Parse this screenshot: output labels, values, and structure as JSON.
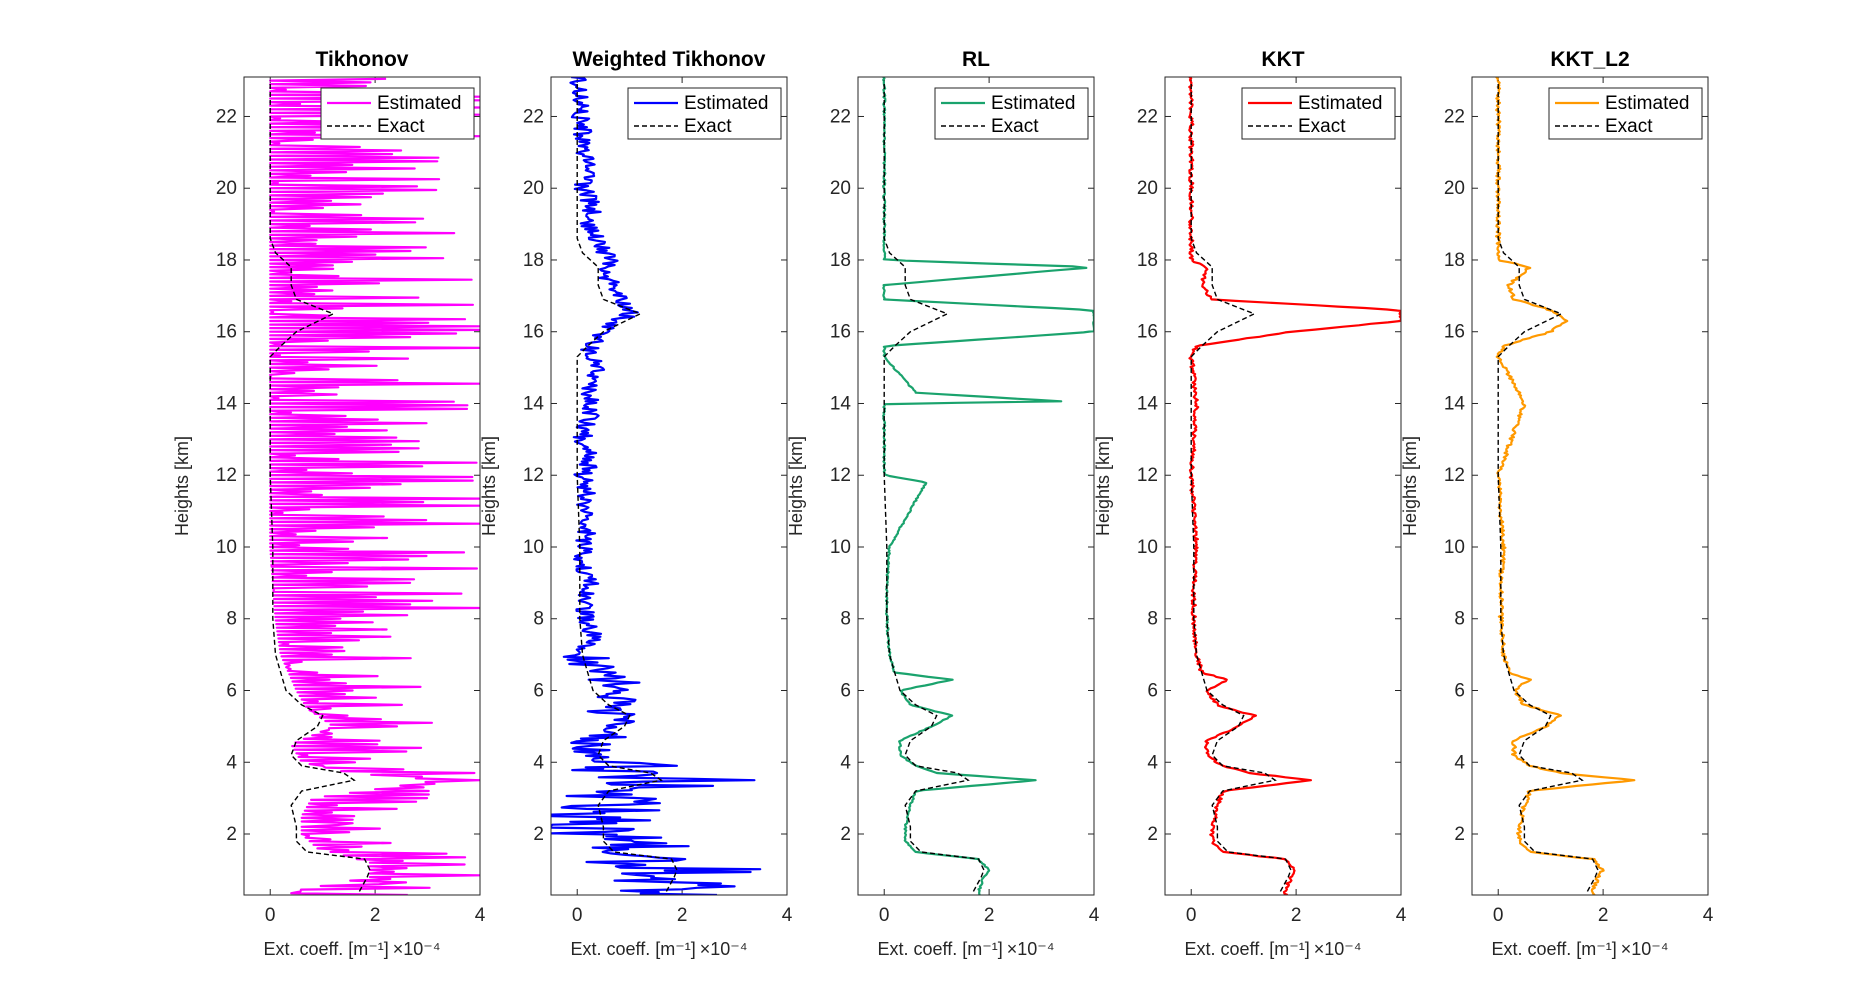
{
  "chart_data": [
    {
      "type": "line",
      "title": "Tikhonov",
      "xlabel": "Ext. coeff. [m⁻¹]",
      "x_multiplier": "×10⁻⁴",
      "ylabel": "Heights [km]",
      "xlim": [
        -0.5,
        4
      ],
      "ylim": [
        0.3,
        23.1
      ],
      "xticks": [
        "0",
        "2",
        "4"
      ],
      "yticks": [
        "2",
        "4",
        "6",
        "8",
        "10",
        "12",
        "14",
        "16",
        "18",
        "20",
        "22"
      ],
      "legend": [
        "Estimated",
        "Exact"
      ],
      "legend_position": "top-right",
      "color": "#ff00ff",
      "estimated_style": "oscillating",
      "estimated_noise": 4.3,
      "series": [
        {
          "name": "Estimated",
          "y": [
            0.4,
            0.8,
            1.2,
            1.6,
            2.0,
            2.5,
            3.0,
            3.5,
            3.7,
            4.0,
            4.5,
            5.0,
            5.5,
            6.0,
            7.0,
            8.0,
            10.0,
            12.0,
            14.0,
            16.0,
            18.0,
            20.0,
            23.0
          ],
          "x": [
            0.4,
            1.9,
            1.9,
            0.9,
            0.6,
            0.6,
            0.8,
            3.2,
            1.5,
            0.6,
            0.4,
            1.2,
            0.7,
            0.5,
            0.2,
            0.1,
            0.0,
            0.0,
            0.0,
            0.0,
            0.0,
            0.0,
            0.0
          ]
        },
        {
          "name": "Exact",
          "y": [
            0.4,
            0.8,
            1.0,
            1.3,
            1.5,
            1.8,
            2.2,
            2.8,
            3.2,
            3.5,
            3.7,
            3.9,
            4.2,
            4.6,
            5.0,
            5.3,
            5.6,
            6.0,
            6.5,
            7.0,
            8.0,
            9.0,
            10.0,
            12.0,
            14.0,
            15.3,
            15.6,
            16.0,
            16.5,
            16.9,
            17.3,
            17.8,
            18.2,
            18.6,
            20.0,
            23.0
          ],
          "x": [
            1.7,
            1.85,
            1.9,
            1.8,
            0.7,
            0.5,
            0.5,
            0.4,
            0.6,
            1.6,
            1.4,
            0.6,
            0.4,
            0.5,
            0.9,
            1.0,
            0.6,
            0.3,
            0.2,
            0.1,
            0.05,
            0.05,
            0.05,
            0.0,
            0.0,
            0.0,
            0.2,
            0.5,
            1.2,
            0.5,
            0.4,
            0.4,
            0.1,
            0.0,
            0.0,
            0.0
          ]
        }
      ]
    },
    {
      "type": "line",
      "title": "Weighted Tikhonov",
      "xlabel": "Ext. coeff. [m⁻¹]",
      "x_multiplier": "×10⁻⁴",
      "ylabel": "Heights [km]",
      "xlim": [
        -0.5,
        4
      ],
      "ylim": [
        0.3,
        23.1
      ],
      "xticks": [
        "0",
        "2",
        "4"
      ],
      "yticks": [
        "2",
        "4",
        "6",
        "8",
        "10",
        "12",
        "14",
        "16",
        "18",
        "20",
        "22"
      ],
      "legend": [
        "Estimated",
        "Exact"
      ],
      "legend_position": "top-right",
      "color": "#0000ff",
      "estimated_style": "noisy",
      "series": [
        {
          "name": "Estimated",
          "y": [
            0.3,
            0.5,
            0.8,
            1.0,
            1.3,
            1.6,
            2.0,
            2.5,
            3.0,
            3.5,
            3.8,
            4.0,
            4.5,
            5.0,
            5.5,
            6.0,
            6.5,
            7.0,
            7.5,
            8.0,
            8.5,
            9.0,
            9.5,
            10.0,
            10.5,
            11.0,
            11.5,
            12.0,
            12.5,
            13.0,
            13.5,
            14.0,
            14.5,
            15.0,
            15.5,
            16.0,
            16.5,
            17.0,
            17.5,
            18.0,
            18.5,
            19.0,
            19.5,
            20.0,
            20.5,
            21.0,
            21.5,
            22.0,
            22.5,
            23.0
          ],
          "x": [
            1.5,
            2.2,
            1.8,
            2.5,
            1.0,
            1.2,
            0.4,
            0.6,
            0.3,
            2.0,
            0.8,
            0.5,
            0.2,
            1.0,
            0.5,
            1.0,
            0.4,
            0.1,
            0.3,
            0.2,
            0.1,
            0.3,
            0.1,
            0.1,
            0.2,
            0.1,
            0.2,
            0.1,
            0.3,
            0.1,
            0.2,
            0.3,
            0.2,
            0.4,
            0.2,
            0.5,
            1.0,
            0.8,
            0.6,
            0.6,
            0.4,
            0.2,
            0.3,
            0.1,
            0.2,
            0.1,
            0.1,
            0.05,
            0.05,
            0.05
          ]
        },
        {
          "name": "Exact",
          "y": [
            0.4,
            0.8,
            1.0,
            1.3,
            1.5,
            1.8,
            2.2,
            2.8,
            3.2,
            3.5,
            3.7,
            3.9,
            4.2,
            4.6,
            5.0,
            5.3,
            5.6,
            6.0,
            6.5,
            7.0,
            8.0,
            9.0,
            10.0,
            12.0,
            14.0,
            15.3,
            15.6,
            16.0,
            16.5,
            16.9,
            17.3,
            17.8,
            18.2,
            18.6,
            20.0,
            23.0
          ],
          "x": [
            1.7,
            1.85,
            1.9,
            1.8,
            0.7,
            0.5,
            0.5,
            0.4,
            0.6,
            1.6,
            1.4,
            0.6,
            0.4,
            0.5,
            0.9,
            1.0,
            0.6,
            0.3,
            0.2,
            0.1,
            0.05,
            0.05,
            0.05,
            0.0,
            0.0,
            0.0,
            0.2,
            0.5,
            1.2,
            0.5,
            0.4,
            0.4,
            0.1,
            0.0,
            0.0,
            0.0
          ]
        }
      ]
    },
    {
      "type": "line",
      "title": "RL",
      "xlabel": "Ext. coeff. [m⁻¹]",
      "x_multiplier": "×10⁻⁴",
      "ylabel": "Heights [km]",
      "xlim": [
        -0.5,
        4
      ],
      "ylim": [
        0.3,
        23.1
      ],
      "xticks": [
        "0",
        "2",
        "4"
      ],
      "yticks": [
        "2",
        "4",
        "6",
        "8",
        "10",
        "12",
        "14",
        "16",
        "18",
        "20",
        "22"
      ],
      "legend": [
        "Estimated",
        "Exact"
      ],
      "legend_position": "top-right",
      "color": "#1aa36d",
      "estimated_style": "spiky",
      "series": [
        {
          "name": "Estimated",
          "y": [
            0.4,
            0.8,
            1.0,
            1.3,
            1.5,
            1.8,
            2.2,
            2.8,
            3.2,
            3.5,
            3.7,
            3.9,
            4.2,
            4.6,
            5.0,
            5.3,
            5.6,
            6.0,
            6.3,
            6.5,
            7.0,
            8.0,
            9.0,
            10.0,
            11.8,
            12.0,
            14.0,
            14.05,
            14.3,
            15.3,
            15.6,
            16.0,
            16.2,
            16.4,
            16.6,
            16.9,
            17.3,
            17.8,
            18.0,
            20.0,
            23.0
          ],
          "x": [
            1.8,
            1.9,
            2.0,
            1.8,
            0.6,
            0.4,
            0.4,
            0.5,
            0.6,
            2.9,
            1.0,
            0.6,
            0.3,
            0.3,
            0.9,
            1.3,
            0.5,
            0.3,
            1.3,
            0.2,
            0.1,
            0.05,
            0.05,
            0.1,
            0.8,
            0.0,
            0.0,
            3.5,
            0.6,
            0.0,
            0.0,
            4.0,
            4.0,
            4.0,
            4.0,
            0.0,
            0.0,
            4.0,
            0.0,
            0.0,
            0.0
          ]
        },
        {
          "name": "Exact",
          "y": [
            0.4,
            0.8,
            1.0,
            1.3,
            1.5,
            1.8,
            2.2,
            2.8,
            3.2,
            3.5,
            3.7,
            3.9,
            4.2,
            4.6,
            5.0,
            5.3,
            5.6,
            6.0,
            6.5,
            7.0,
            8.0,
            9.0,
            10.0,
            12.0,
            14.0,
            15.3,
            15.6,
            16.0,
            16.5,
            16.9,
            17.3,
            17.8,
            18.2,
            18.6,
            20.0,
            23.0
          ],
          "x": [
            1.7,
            1.85,
            1.9,
            1.8,
            0.7,
            0.5,
            0.5,
            0.4,
            0.6,
            1.6,
            1.4,
            0.6,
            0.4,
            0.5,
            0.9,
            1.0,
            0.6,
            0.3,
            0.2,
            0.1,
            0.05,
            0.05,
            0.05,
            0.0,
            0.0,
            0.0,
            0.2,
            0.5,
            1.2,
            0.5,
            0.4,
            0.4,
            0.1,
            0.0,
            0.0,
            0.0
          ]
        }
      ]
    },
    {
      "type": "line",
      "title": "KKT",
      "xlabel": "Ext. coeff. [m⁻¹]",
      "x_multiplier": "×10⁻⁴",
      "ylabel": "Heights [km]",
      "xlim": [
        -0.5,
        4
      ],
      "ylim": [
        0.3,
        23.1
      ],
      "xticks": [
        "0",
        "2",
        "4"
      ],
      "yticks": [
        "2",
        "4",
        "6",
        "8",
        "10",
        "12",
        "14",
        "16",
        "18",
        "20",
        "22"
      ],
      "legend": [
        "Estimated",
        "Exact"
      ],
      "legend_position": "top-right",
      "color": "#ff0000",
      "estimated_style": "smooth",
      "series": [
        {
          "name": "Estimated",
          "y": [
            0.4,
            0.8,
            1.0,
            1.3,
            1.5,
            1.8,
            2.2,
            2.8,
            3.2,
            3.5,
            3.7,
            3.9,
            4.2,
            4.6,
            5.0,
            5.3,
            5.6,
            6.0,
            6.3,
            6.5,
            7.0,
            8.0,
            9.0,
            10.0,
            12.0,
            14.0,
            15.3,
            15.6,
            16.0,
            16.3,
            16.6,
            16.9,
            17.3,
            17.8,
            18.0,
            20.0,
            23.0
          ],
          "x": [
            1.8,
            1.9,
            2.0,
            1.8,
            0.6,
            0.4,
            0.4,
            0.5,
            0.6,
            2.3,
            1.1,
            0.6,
            0.3,
            0.3,
            0.9,
            1.2,
            0.5,
            0.3,
            0.7,
            0.2,
            0.1,
            0.05,
            0.05,
            0.1,
            0.0,
            0.1,
            0.0,
            0.1,
            1.9,
            4.0,
            4.0,
            0.4,
            0.2,
            0.3,
            0.0,
            0.0,
            0.0
          ]
        },
        {
          "name": "Exact",
          "y": [
            0.4,
            0.8,
            1.0,
            1.3,
            1.5,
            1.8,
            2.2,
            2.8,
            3.2,
            3.5,
            3.7,
            3.9,
            4.2,
            4.6,
            5.0,
            5.3,
            5.6,
            6.0,
            6.5,
            7.0,
            8.0,
            9.0,
            10.0,
            12.0,
            14.0,
            15.3,
            15.6,
            16.0,
            16.5,
            16.9,
            17.3,
            17.8,
            18.2,
            18.6,
            20.0,
            23.0
          ],
          "x": [
            1.7,
            1.85,
            1.9,
            1.8,
            0.7,
            0.5,
            0.5,
            0.4,
            0.6,
            1.6,
            1.4,
            0.6,
            0.4,
            0.5,
            0.9,
            1.0,
            0.6,
            0.3,
            0.2,
            0.1,
            0.05,
            0.05,
            0.05,
            0.0,
            0.0,
            0.0,
            0.2,
            0.5,
            1.2,
            0.5,
            0.4,
            0.4,
            0.1,
            0.0,
            0.0,
            0.0
          ]
        }
      ]
    },
    {
      "type": "line",
      "title": "KKT_L2",
      "xlabel": "Ext. coeff. [m⁻¹]",
      "x_multiplier": "×10⁻⁴",
      "ylabel": "Heights [km]",
      "xlim": [
        -0.5,
        4
      ],
      "ylim": [
        0.3,
        23.1
      ],
      "xticks": [
        "0",
        "2",
        "4"
      ],
      "yticks": [
        "2",
        "4",
        "6",
        "8",
        "10",
        "12",
        "14",
        "16",
        "18",
        "20",
        "22"
      ],
      "legend": [
        "Estimated",
        "Exact"
      ],
      "legend_position": "top-right",
      "color": "#ff9900",
      "estimated_style": "smooth",
      "series": [
        {
          "name": "Estimated",
          "y": [
            0.4,
            0.8,
            1.0,
            1.3,
            1.5,
            1.8,
            2.2,
            2.8,
            3.2,
            3.5,
            3.7,
            3.9,
            4.2,
            4.6,
            5.0,
            5.3,
            5.6,
            6.0,
            6.3,
            6.5,
            7.0,
            8.0,
            9.0,
            10.0,
            12.0,
            14.0,
            15.3,
            15.6,
            16.0,
            16.3,
            16.6,
            16.9,
            17.3,
            17.8,
            18.0,
            20.0,
            23.0
          ],
          "x": [
            1.8,
            1.9,
            2.0,
            1.8,
            0.6,
            0.4,
            0.4,
            0.5,
            0.6,
            2.6,
            1.2,
            0.6,
            0.3,
            0.3,
            0.9,
            1.2,
            0.5,
            0.3,
            0.6,
            0.2,
            0.1,
            0.05,
            0.05,
            0.1,
            0.0,
            0.5,
            0.0,
            0.1,
            1.0,
            1.3,
            1.0,
            0.3,
            0.2,
            0.6,
            0.0,
            0.0,
            0.0
          ]
        },
        {
          "name": "Exact",
          "y": [
            0.4,
            0.8,
            1.0,
            1.3,
            1.5,
            1.8,
            2.2,
            2.8,
            3.2,
            3.5,
            3.7,
            3.9,
            4.2,
            4.6,
            5.0,
            5.3,
            5.6,
            6.0,
            6.5,
            7.0,
            8.0,
            9.0,
            10.0,
            12.0,
            14.0,
            15.3,
            15.6,
            16.0,
            16.5,
            16.9,
            17.3,
            17.8,
            18.2,
            18.6,
            20.0,
            23.0
          ],
          "x": [
            1.7,
            1.85,
            1.9,
            1.8,
            0.7,
            0.5,
            0.5,
            0.4,
            0.6,
            1.6,
            1.4,
            0.6,
            0.4,
            0.5,
            0.9,
            1.0,
            0.6,
            0.3,
            0.2,
            0.1,
            0.05,
            0.05,
            0.05,
            0.0,
            0.0,
            0.0,
            0.2,
            0.5,
            1.2,
            0.5,
            0.4,
            0.4,
            0.1,
            0.0,
            0.0,
            0.0
          ]
        }
      ]
    }
  ]
}
